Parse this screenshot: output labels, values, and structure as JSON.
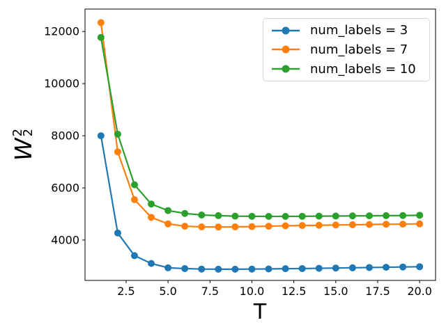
{
  "figure": {
    "background": "#ffffff",
    "axis_color": "#000000"
  },
  "chart_data": {
    "type": "line",
    "title": "",
    "xlabel": "T",
    "ylabel": {
      "base": "W",
      "sup": "2",
      "sub": "2"
    },
    "grid": false,
    "legend_position": "upper right",
    "marker": "o",
    "xlim": [
      0.05,
      20.95
    ],
    "ylim": [
      2450,
      12860
    ],
    "xticks": {
      "values": [
        2.5,
        5.0,
        7.5,
        10.0,
        12.5,
        15.0,
        17.5,
        20.0
      ],
      "labels": [
        "2.5",
        "5.0",
        "7.5",
        "10.0",
        "12.5",
        "15.0",
        "17.5",
        "20.0"
      ]
    },
    "yticks": {
      "values": [
        4000,
        6000,
        8000,
        10000,
        12000
      ],
      "labels": [
        "4000",
        "6000",
        "8000",
        "10000",
        "12000"
      ]
    },
    "x": [
      1,
      2,
      3,
      4,
      5,
      6,
      7,
      8,
      9,
      10,
      11,
      12,
      13,
      14,
      15,
      16,
      17,
      18,
      19,
      20
    ],
    "series": [
      {
        "name": "num_labels = 3",
        "color": "#1f77b4",
        "values": [
          8000,
          4270,
          3400,
          3100,
          2935,
          2905,
          2885,
          2880,
          2880,
          2885,
          2890,
          2900,
          2905,
          2915,
          2925,
          2935,
          2945,
          2955,
          2965,
          2975
        ]
      },
      {
        "name": "num_labels = 7",
        "color": "#ff7f0e",
        "values": [
          12340,
          7380,
          5550,
          4870,
          4620,
          4530,
          4505,
          4500,
          4505,
          4515,
          4530,
          4545,
          4555,
          4565,
          4575,
          4585,
          4595,
          4605,
          4610,
          4620
        ]
      },
      {
        "name": "num_labels = 10",
        "color": "#2ca02c",
        "values": [
          11770,
          8060,
          6120,
          5380,
          5130,
          5020,
          4960,
          4935,
          4915,
          4910,
          4905,
          4905,
          4910,
          4915,
          4920,
          4925,
          4930,
          4935,
          4940,
          4950
        ]
      }
    ]
  }
}
